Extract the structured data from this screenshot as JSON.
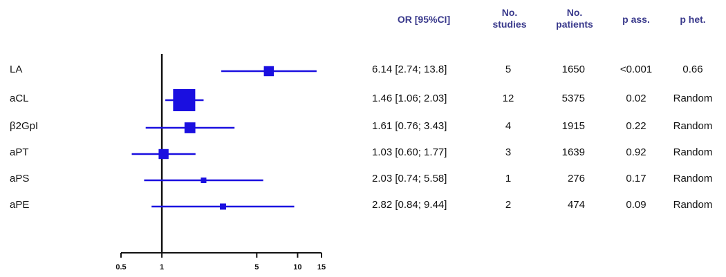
{
  "chart_data": {
    "type": "forest",
    "x_scale": "log",
    "xlim": [
      0.5,
      15
    ],
    "x_ticks": [
      "0.5",
      "1",
      "5",
      "10",
      "15"
    ],
    "reference_line": 1,
    "color": "#1a0fe0",
    "headers": {
      "or_ci": "OR [95%CI]",
      "studies": [
        "No.",
        "studies"
      ],
      "patients": [
        "No.",
        "patients"
      ],
      "p_ass": "p ass.",
      "p_het": "p het."
    },
    "rows": [
      {
        "label": "LA",
        "or": 6.14,
        "lo": 2.74,
        "hi": 13.8,
        "or_ci": "6.14 [2.74; 13.8]",
        "studies": "5",
        "patients": "1650",
        "p_ass": "<0.001",
        "p_het": "0.66"
      },
      {
        "label": "aCL",
        "or": 1.46,
        "lo": 1.06,
        "hi": 2.03,
        "or_ci": "1.46 [1.06; 2.03]",
        "studies": "12",
        "patients": "5375",
        "p_ass": "0.02",
        "p_het": "Random"
      },
      {
        "label": "β2GpI",
        "or": 1.61,
        "lo": 0.76,
        "hi": 3.43,
        "or_ci": "1.61 [0.76; 3.43]",
        "studies": "4",
        "patients": "1915",
        "p_ass": "0.22",
        "p_het": "Random"
      },
      {
        "label": "aPT",
        "or": 1.03,
        "lo": 0.6,
        "hi": 1.77,
        "or_ci": "1.03 [0.60; 1.77]",
        "studies": "3",
        "patients": "1639",
        "p_ass": "0.92",
        "p_het": "Random"
      },
      {
        "label": "aPS",
        "or": 2.03,
        "lo": 0.74,
        "hi": 5.58,
        "or_ci": "2.03 [0.74; 5.58]",
        "studies": "1",
        "patients": "276",
        "p_ass": "0.17",
        "p_het": "Random"
      },
      {
        "label": "aPE",
        "or": 2.82,
        "lo": 0.84,
        "hi": 9.44,
        "or_ci": "2.82 [0.84; 9.44]",
        "studies": "2",
        "patients": "474",
        "p_ass": "0.09",
        "p_het": "Random"
      }
    ]
  }
}
